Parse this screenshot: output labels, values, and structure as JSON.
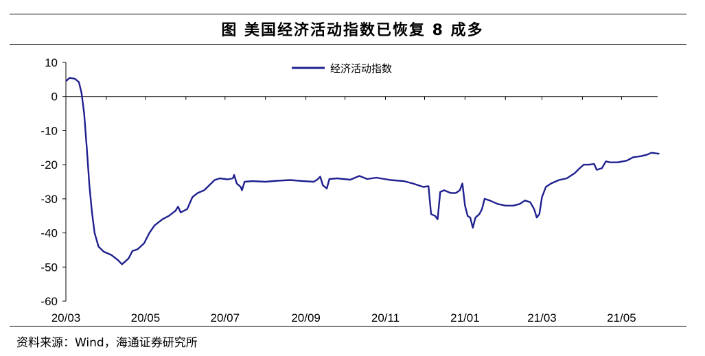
{
  "title": "图  美国经济活动指数已恢复 8 成多",
  "source": "资料来源：Wind，海通证券研究所",
  "colors": {
    "line": "#1f1f8f",
    "axis": "#000000",
    "background": "#ffffff"
  },
  "chart_data": {
    "type": "line",
    "title": "图 美国经济活动指数已恢复 8 成多",
    "xlabel": "",
    "ylabel": "",
    "ylim": [
      -60,
      10
    ],
    "yticks": [
      10,
      0,
      -10,
      -20,
      -30,
      -40,
      -50,
      -60
    ],
    "xticks": [
      "20/03",
      "20/05",
      "20/07",
      "20/09",
      "20/11",
      "21/01",
      "21/03",
      "21/05"
    ],
    "grid": false,
    "legend": "top-center",
    "series": [
      {
        "name": "经济活动指数",
        "color": "#1f1f8f",
        "points": [
          [
            "2020-03-01",
            4.5
          ],
          [
            "2020-03-04",
            5.5
          ],
          [
            "2020-03-08",
            5.2
          ],
          [
            "2020-03-11",
            4.2
          ],
          [
            "2020-03-13",
            1.0
          ],
          [
            "2020-03-15",
            -5
          ],
          [
            "2020-03-17",
            -15
          ],
          [
            "2020-03-19",
            -26
          ],
          [
            "2020-03-21",
            -34
          ],
          [
            "2020-03-23",
            -40
          ],
          [
            "2020-03-26",
            -44
          ],
          [
            "2020-03-30",
            -45.5
          ],
          [
            "2020-04-05",
            -46.5
          ],
          [
            "2020-04-10",
            -48
          ],
          [
            "2020-04-13",
            -49.2
          ],
          [
            "2020-04-16",
            -48.2
          ],
          [
            "2020-04-18",
            -47.5
          ],
          [
            "2020-04-21",
            -45.3
          ],
          [
            "2020-04-25",
            -44.8
          ],
          [
            "2020-04-30",
            -43
          ],
          [
            "2020-05-04",
            -40
          ],
          [
            "2020-05-08",
            -37.8
          ],
          [
            "2020-05-14",
            -36
          ],
          [
            "2020-05-19",
            -35
          ],
          [
            "2020-05-24",
            -33.5
          ],
          [
            "2020-05-26",
            -32.3
          ],
          [
            "2020-05-28",
            -34
          ],
          [
            "2020-06-02",
            -33
          ],
          [
            "2020-06-06",
            -29.5
          ],
          [
            "2020-06-10",
            -28.3
          ],
          [
            "2020-06-15",
            -27.5
          ],
          [
            "2020-06-19",
            -26
          ],
          [
            "2020-06-23",
            -24.5
          ],
          [
            "2020-06-27",
            -24
          ],
          [
            "2020-07-03",
            -24.3
          ],
          [
            "2020-07-07",
            -24
          ],
          [
            "2020-07-08",
            -23
          ],
          [
            "2020-07-10",
            -25.5
          ],
          [
            "2020-07-13",
            -26.5
          ],
          [
            "2020-07-14",
            -27.5
          ],
          [
            "2020-07-16",
            -25
          ],
          [
            "2020-07-22",
            -24.8
          ],
          [
            "2020-08-01",
            -25
          ],
          [
            "2020-08-10",
            -24.7
          ],
          [
            "2020-08-20",
            -24.5
          ],
          [
            "2020-08-30",
            -24.8
          ],
          [
            "2020-09-07",
            -25
          ],
          [
            "2020-09-10",
            -24.3
          ],
          [
            "2020-09-12",
            -23.5
          ],
          [
            "2020-09-14",
            -26
          ],
          [
            "2020-09-17",
            -27
          ],
          [
            "2020-09-19",
            -24.2
          ],
          [
            "2020-09-25",
            -24
          ],
          [
            "2020-10-05",
            -24.4
          ],
          [
            "2020-10-12",
            -23.3
          ],
          [
            "2020-10-18",
            -24.2
          ],
          [
            "2020-10-25",
            -23.8
          ],
          [
            "2020-11-05",
            -24.5
          ],
          [
            "2020-11-15",
            -24.8
          ],
          [
            "2020-11-22",
            -25.5
          ],
          [
            "2020-11-30",
            -26.5
          ],
          [
            "2020-12-04",
            -26.3
          ],
          [
            "2020-12-06",
            -34.5
          ],
          [
            "2020-12-09",
            -35
          ],
          [
            "2020-12-11",
            -36
          ],
          [
            "2020-12-13",
            -28
          ],
          [
            "2020-12-16",
            -27.5
          ],
          [
            "2020-12-21",
            -28.3
          ],
          [
            "2020-12-25",
            -28.3
          ],
          [
            "2020-12-28",
            -27.5
          ],
          [
            "2020-12-30",
            -25.5
          ],
          [
            "2021-01-01",
            -32
          ],
          [
            "2021-01-03",
            -35
          ],
          [
            "2021-01-05",
            -35.5
          ],
          [
            "2021-01-07",
            -38.5
          ],
          [
            "2021-01-09",
            -35.5
          ],
          [
            "2021-01-12",
            -34.5
          ],
          [
            "2021-01-14",
            -33
          ],
          [
            "2021-01-16",
            -30
          ],
          [
            "2021-01-20",
            -30.5
          ],
          [
            "2021-01-26",
            -31.5
          ],
          [
            "2021-02-01",
            -32
          ],
          [
            "2021-02-07",
            -32
          ],
          [
            "2021-02-12",
            -31.5
          ],
          [
            "2021-02-16",
            -30.5
          ],
          [
            "2021-02-20",
            -31
          ],
          [
            "2021-02-23",
            -33
          ],
          [
            "2021-02-25",
            -35.5
          ],
          [
            "2021-02-27",
            -34.5
          ],
          [
            "2021-03-01",
            -29.5
          ],
          [
            "2021-03-04",
            -26.5
          ],
          [
            "2021-03-08",
            -25.5
          ],
          [
            "2021-03-14",
            -24.5
          ],
          [
            "2021-03-20",
            -24
          ],
          [
            "2021-03-26",
            -22.5
          ],
          [
            "2021-03-30",
            -21
          ],
          [
            "2021-04-02",
            -20
          ],
          [
            "2021-04-06",
            -20
          ],
          [
            "2021-04-10",
            -19.8
          ],
          [
            "2021-04-12",
            -21.5
          ],
          [
            "2021-04-16",
            -21
          ],
          [
            "2021-04-19",
            -19
          ],
          [
            "2021-04-22",
            -19.3
          ],
          [
            "2021-04-28",
            -19.3
          ],
          [
            "2021-05-05",
            -18.8
          ],
          [
            "2021-05-10",
            -17.8
          ],
          [
            "2021-05-16",
            -17.5
          ],
          [
            "2021-05-21",
            -17
          ],
          [
            "2021-05-24",
            -16.5
          ],
          [
            "2021-05-30",
            -16.8
          ]
        ]
      }
    ]
  }
}
